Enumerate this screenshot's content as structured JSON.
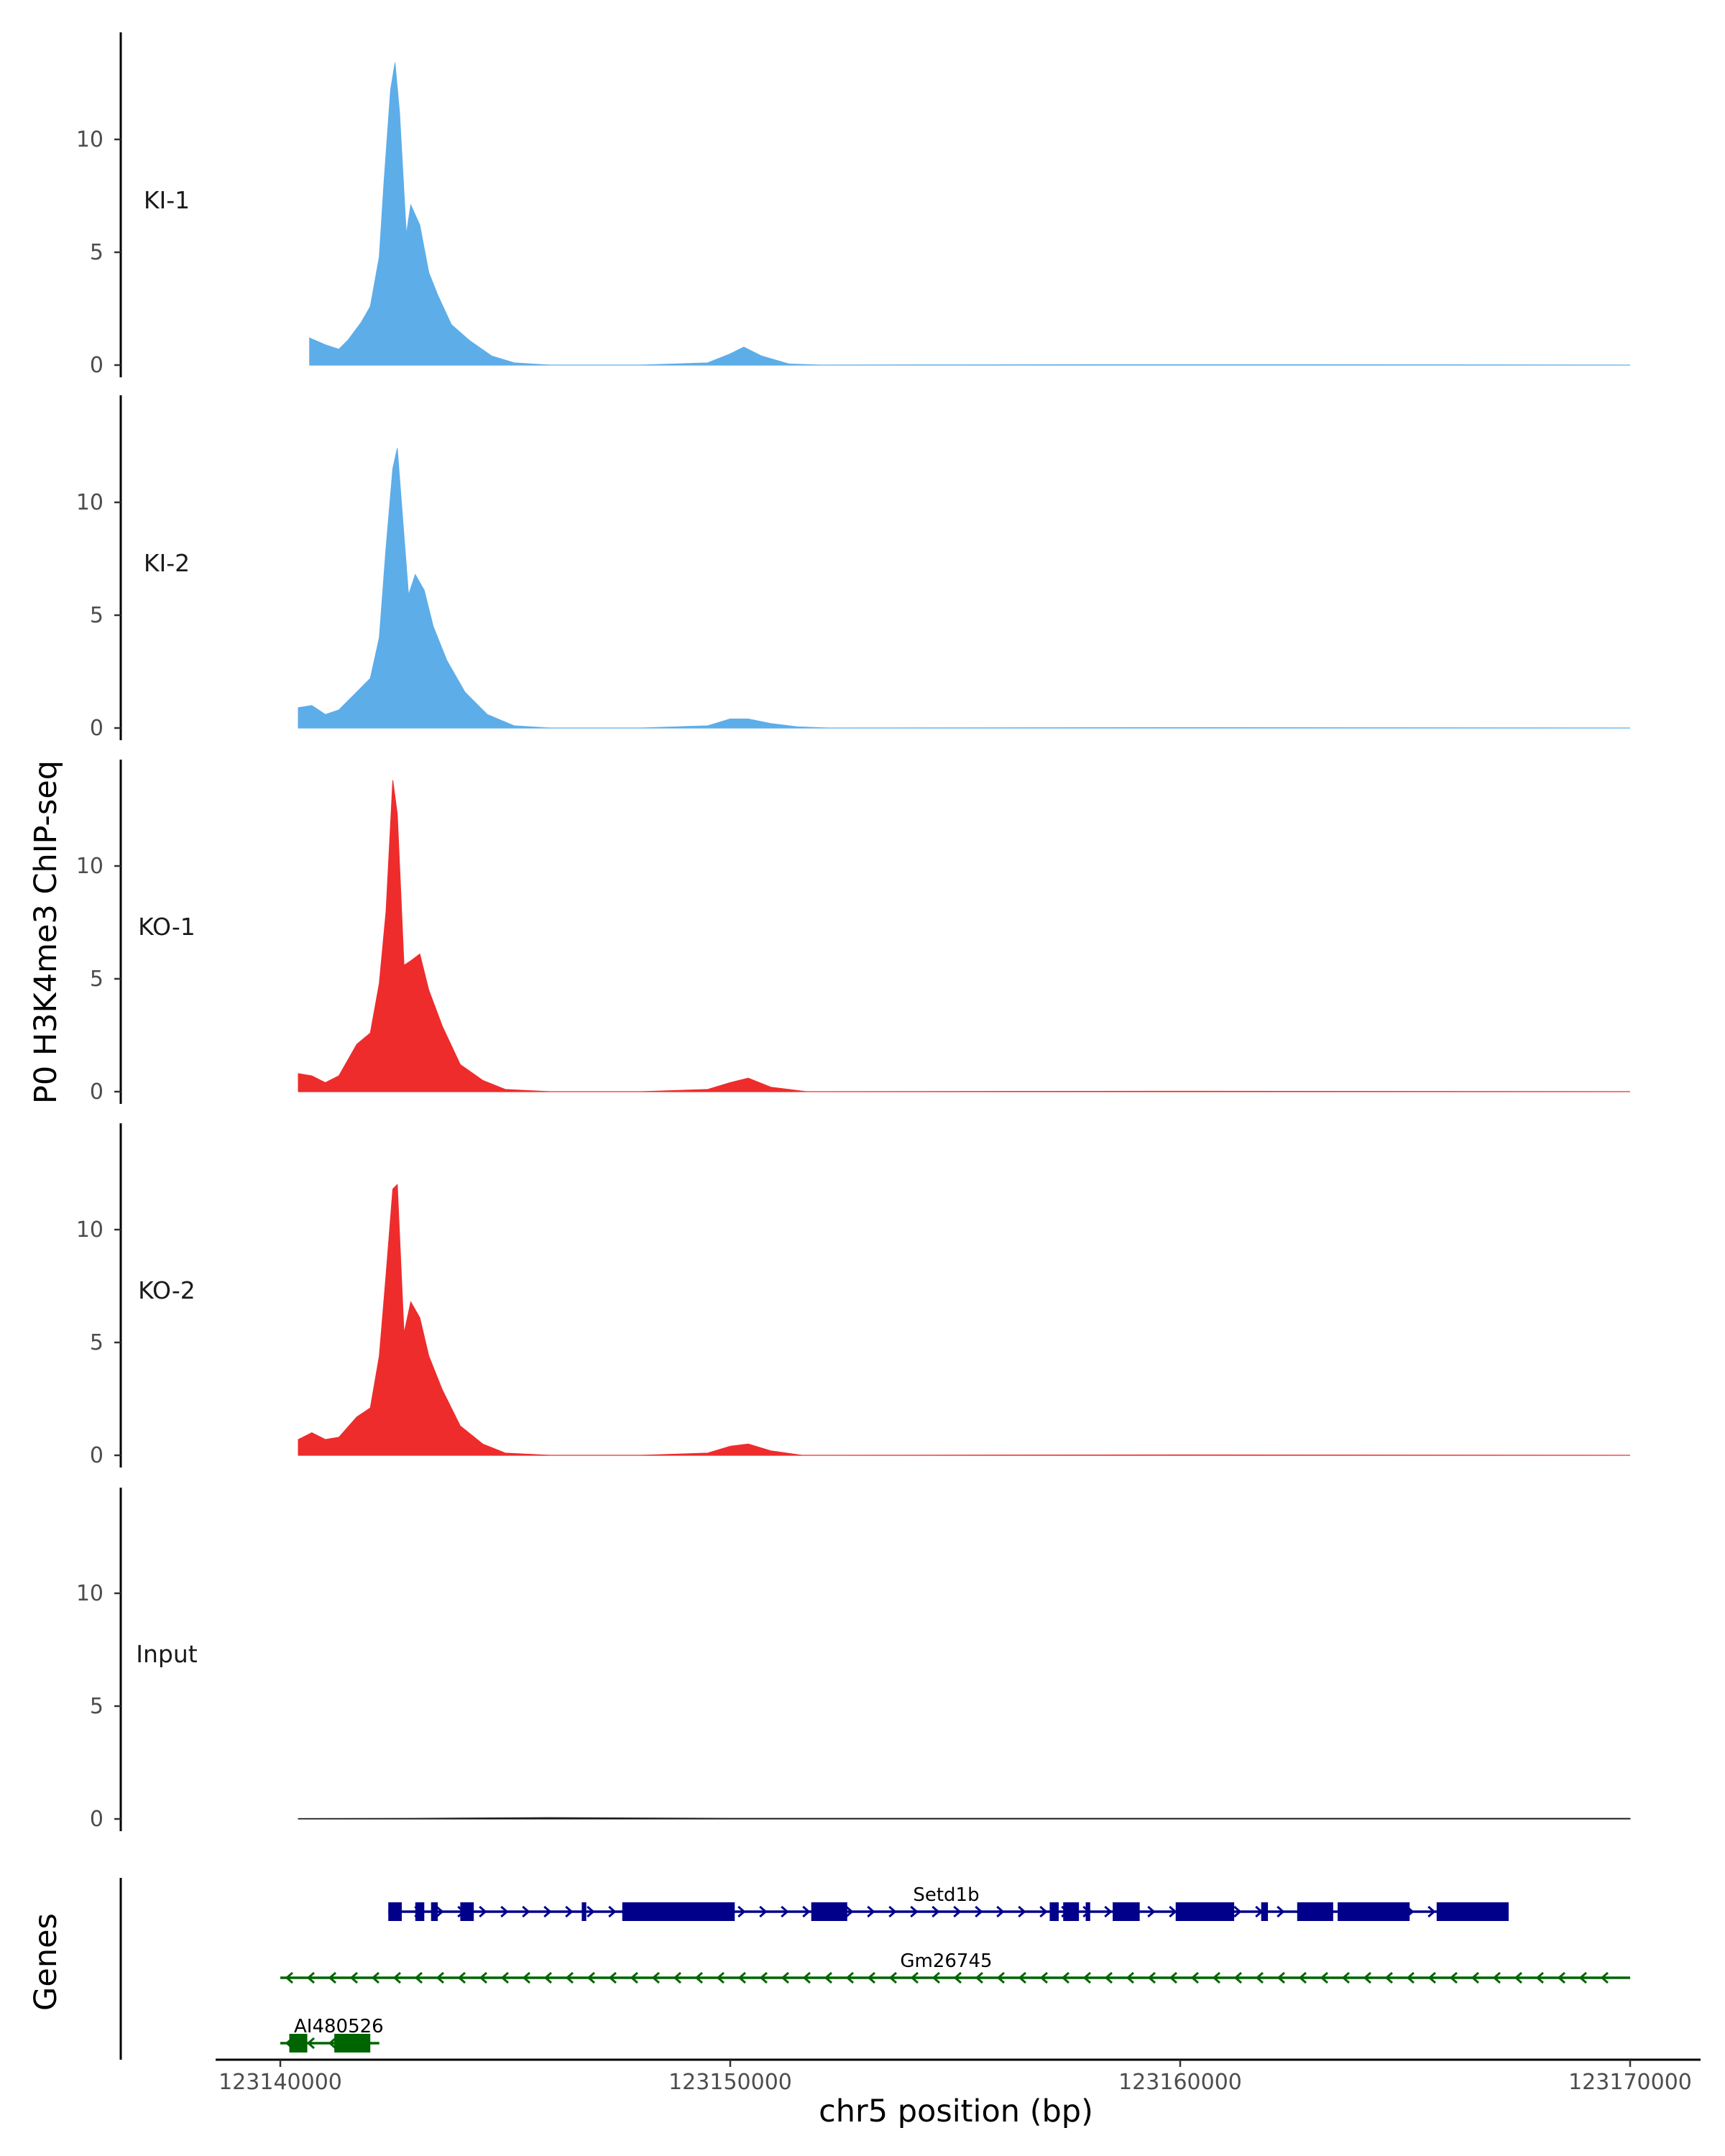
{
  "chart_data": {
    "type": "area",
    "ylabel": "P0 H3K4me3 ChIP-seq",
    "xlabel": "chr5 position (bp)",
    "genes_label": "Genes",
    "xlim": [
      123140000,
      123170000
    ],
    "ylim": [
      0,
      14.5
    ],
    "yticks": [
      0,
      5,
      10
    ],
    "xticks": [
      123140000,
      123150000,
      123160000,
      123170000
    ],
    "xtick_labels": [
      "123140000",
      "123150000",
      "123160000",
      "123170000"
    ],
    "ytick_labels": [
      "0",
      "5",
      "10"
    ],
    "series": [
      {
        "name": "KI-1",
        "color": "#5dade9",
        "x": [
          123140650,
          123141000,
          123141300,
          123141500,
          123141800,
          123142000,
          123142200,
          123142300,
          123142450,
          123142550,
          123142650,
          123142800,
          123142900,
          123143100,
          123143300,
          123143500,
          123143800,
          123144200,
          123144700,
          123145200,
          123146000,
          123148000,
          123149500,
          123150000,
          123150300,
          123150700,
          123151300,
          123152000,
          123158000,
          123163000,
          123170000
        ],
        "values": [
          1.2,
          0.9,
          0.7,
          1.1,
          1.9,
          2.6,
          4.8,
          8.0,
          12.2,
          13.4,
          11.2,
          5.8,
          7.1,
          6.2,
          4.1,
          3.1,
          1.8,
          1.1,
          0.4,
          0.1,
          0.0,
          0.0,
          0.1,
          0.5,
          0.8,
          0.4,
          0.05,
          0.0,
          0.02,
          0.02,
          0.0
        ]
      },
      {
        "name": "KI-2",
        "color": "#5dade9",
        "x": [
          123140400,
          123140700,
          123141000,
          123141300,
          123141700,
          123142000,
          123142200,
          123142350,
          123142500,
          123142600,
          123142700,
          123142850,
          123143000,
          123143200,
          123143400,
          123143700,
          123144100,
          123144600,
          123145200,
          123146000,
          123148000,
          123149500,
          123150000,
          123150400,
          123150900,
          123151500,
          123152200,
          123160000,
          123170000
        ],
        "values": [
          0.9,
          1.0,
          0.6,
          0.8,
          1.6,
          2.2,
          4.0,
          8.0,
          11.5,
          12.4,
          9.8,
          5.9,
          6.8,
          6.1,
          4.5,
          3.0,
          1.6,
          0.6,
          0.1,
          0.0,
          0.0,
          0.1,
          0.4,
          0.4,
          0.2,
          0.05,
          0.0,
          0.02,
          0.0
        ]
      },
      {
        "name": "KO-1",
        "color": "#ee2c2c",
        "x": [
          123140400,
          123140700,
          123141000,
          123141300,
          123141700,
          123142000,
          123142200,
          123142350,
          123142500,
          123142600,
          123142750,
          123142900,
          123143100,
          123143300,
          123143600,
          123144000,
          123144500,
          123145000,
          123146000,
          123148000,
          123149500,
          123150000,
          123150400,
          123150900,
          123151700,
          123160000,
          123170000
        ],
        "values": [
          0.8,
          0.7,
          0.4,
          0.7,
          2.1,
          2.6,
          4.8,
          8.0,
          13.8,
          12.3,
          5.6,
          5.8,
          6.1,
          4.5,
          2.9,
          1.2,
          0.5,
          0.1,
          0.0,
          0.0,
          0.1,
          0.4,
          0.6,
          0.2,
          0.0,
          0.02,
          0.0
        ]
      },
      {
        "name": "KO-2",
        "color": "#ee2c2c",
        "x": [
          123140400,
          123140700,
          123141000,
          123141300,
          123141700,
          123142000,
          123142200,
          123142350,
          123142500,
          123142600,
          123142750,
          123142900,
          123143100,
          123143300,
          123143600,
          123144000,
          123144500,
          123145000,
          123146000,
          123148000,
          123149500,
          123150000,
          123150400,
          123150900,
          123151600,
          123160000,
          123170000
        ],
        "values": [
          0.7,
          1.0,
          0.7,
          0.8,
          1.7,
          2.1,
          4.4,
          8.0,
          11.8,
          12.0,
          5.4,
          6.8,
          6.1,
          4.4,
          2.9,
          1.3,
          0.5,
          0.1,
          0.0,
          0.0,
          0.1,
          0.4,
          0.5,
          0.2,
          0.0,
          0.02,
          0.0
        ]
      },
      {
        "name": "Input",
        "color": "#1a1a1a",
        "x": [
          123140400,
          123143000,
          123146000,
          123150000,
          123155000,
          123160000,
          123165000,
          123170000
        ],
        "values": [
          0.02,
          0.03,
          0.06,
          0.03,
          0.03,
          0.03,
          0.03,
          0.03
        ]
      }
    ],
    "genes": [
      {
        "name": "Setd1b",
        "strand": "+",
        "color": "#00008b",
        "start": 123142400,
        "end": 123167300,
        "label_position": 123154800,
        "exons": [
          [
            123142400,
            123142700
          ],
          [
            123143000,
            123143200
          ],
          [
            123143350,
            123143500
          ],
          [
            123144000,
            123144300
          ],
          [
            123146700,
            123146800
          ],
          [
            123147600,
            123150100
          ],
          [
            123151800,
            123152600
          ],
          [
            123157100,
            123157300
          ],
          [
            123157400,
            123157750
          ],
          [
            123157900,
            123158000
          ],
          [
            123158500,
            123159100
          ],
          [
            123159900,
            123161200
          ],
          [
            123161800,
            123161950
          ],
          [
            123162600,
            123163400
          ],
          [
            123163500,
            123165100
          ],
          [
            123165700,
            123167300
          ]
        ]
      },
      {
        "name": "Gm26745",
        "strand": "-",
        "color": "#006400",
        "start": 123140000,
        "end": 123170000,
        "label_position": 123154800,
        "exons": []
      },
      {
        "name": "AI480526",
        "strand": "-",
        "color": "#006400",
        "start": 123140000,
        "end": 123142200,
        "label_position": 123141300,
        "exons": [
          [
            123140200,
            123140600
          ],
          [
            123141200,
            123142000
          ]
        ]
      }
    ]
  }
}
